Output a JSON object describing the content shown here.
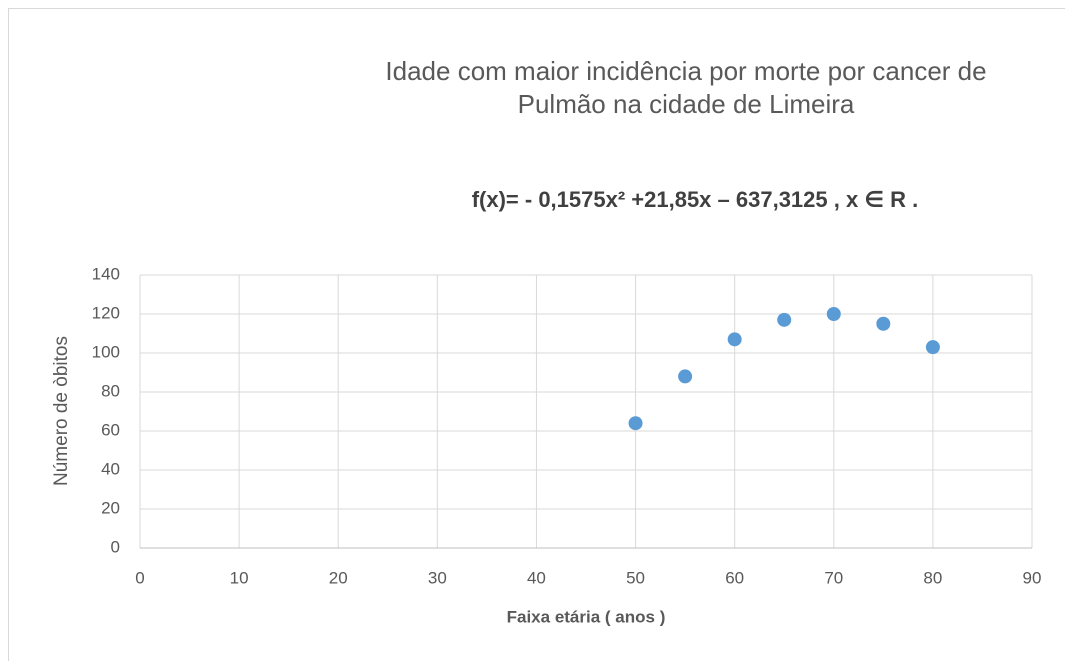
{
  "chart_data": {
    "type": "scatter",
    "title": [
      "Idade com maior incidência por morte por cancer de",
      "Pulmão na cidade de Limeira"
    ],
    "annotation": "f(x)= - 0,1575x² +21,85x – 637,3125 , x ∈ R .",
    "x_label": "Faixa etária ( anos )",
    "y_label": "Número de òbitos",
    "x": [
      50,
      55,
      60,
      65,
      70,
      75,
      80
    ],
    "values": [
      64,
      88,
      107,
      117,
      120,
      115,
      103
    ],
    "color": "#5b9bd5",
    "xlim": [
      0,
      90
    ],
    "xticks": [
      0,
      10,
      20,
      30,
      40,
      50,
      60,
      70,
      80,
      90
    ],
    "ylim": [
      0,
      140
    ],
    "yticks": [
      0,
      20,
      40,
      60,
      80,
      100,
      120,
      140
    ],
    "grid": true
  }
}
